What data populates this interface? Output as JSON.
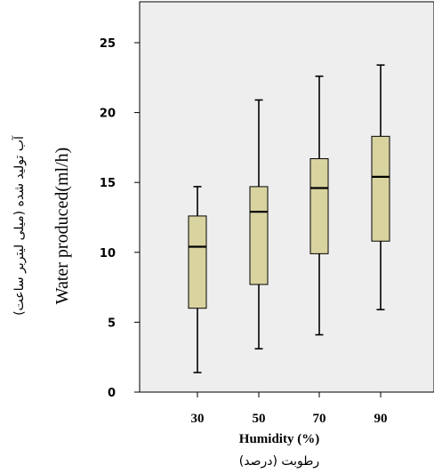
{
  "chart_data": {
    "type": "boxplot",
    "categories": [
      "30",
      "50",
      "70",
      "90"
    ],
    "boxes": [
      {
        "category": "30",
        "min": 1.4,
        "q1": 6.0,
        "median": 10.4,
        "q3": 12.6,
        "max": 14.7
      },
      {
        "category": "50",
        "min": 3.1,
        "q1": 7.7,
        "median": 12.9,
        "q3": 14.7,
        "max": 20.9
      },
      {
        "category": "70",
        "min": 4.1,
        "q1": 9.9,
        "median": 14.6,
        "q3": 16.7,
        "max": 22.6
      },
      {
        "category": "90",
        "min": 5.9,
        "q1": 10.8,
        "median": 15.4,
        "q3": 18.3,
        "max": 23.4
      }
    ],
    "ylim": [
      0,
      25
    ],
    "yticks": [
      "0",
      "5",
      "10",
      "15",
      "20",
      "25"
    ],
    "xlabel": "Humidity (%)",
    "xlabel_fa": "رطوبت (درصد)",
    "ylabel": "Water produced(ml/h)",
    "ylabel_fa": "آب تولید شده (میلی لیتربر ساعت)",
    "colors": {
      "plot_background": "#eeeeee",
      "box_fill": "#d9d3a0",
      "line": "#000000"
    },
    "grid": false
  }
}
